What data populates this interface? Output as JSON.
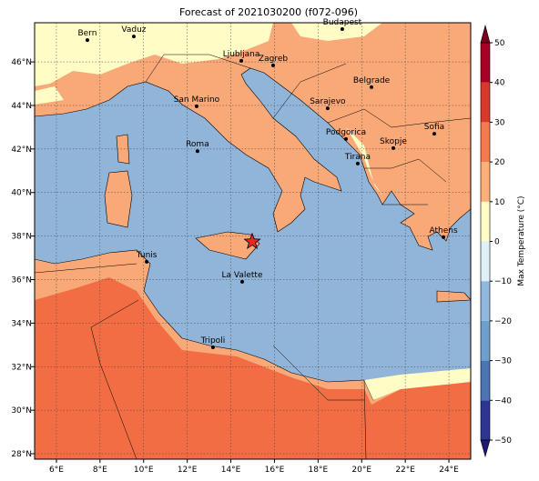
{
  "map": {
    "title": "Forecast of 2021030200 (f072-096)",
    "xlim": [
      5,
      25
    ],
    "ylim": [
      27.75,
      47.8
    ],
    "xticks": [
      {
        "value": 6,
        "label": "6°E"
      },
      {
        "value": 8,
        "label": "8°E"
      },
      {
        "value": 10,
        "label": "10°E"
      },
      {
        "value": 12,
        "label": "12°E"
      },
      {
        "value": 14,
        "label": "14°E"
      },
      {
        "value": 16,
        "label": "16°E"
      },
      {
        "value": 18,
        "label": "18°E"
      },
      {
        "value": 20,
        "label": "20°E"
      },
      {
        "value": 22,
        "label": "22°E"
      },
      {
        "value": 24,
        "label": "24°E"
      }
    ],
    "yticks": [
      {
        "value": 28,
        "label": "28°N"
      },
      {
        "value": 30,
        "label": "30°N"
      },
      {
        "value": 32,
        "label": "32°N"
      },
      {
        "value": 34,
        "label": "34°N"
      },
      {
        "value": 36,
        "label": "36°N"
      },
      {
        "value": 38,
        "label": "38°N"
      },
      {
        "value": 40,
        "label": "40°N"
      },
      {
        "value": 42,
        "label": "42°N"
      },
      {
        "value": 44,
        "label": "44°N"
      },
      {
        "value": 46,
        "label": "46°N"
      }
    ],
    "grid": true,
    "cities": [
      {
        "name": "Bern",
        "lon": 7.42,
        "lat": 47.0
      },
      {
        "name": "Vaduz",
        "lon": 9.55,
        "lat": 47.17
      },
      {
        "name": "Budapest",
        "lon": 19.11,
        "lat": 47.51
      },
      {
        "name": "Ljubljana",
        "lon": 14.48,
        "lat": 46.05
      },
      {
        "name": "Zagreb",
        "lon": 15.94,
        "lat": 45.84
      },
      {
        "name": "Belgrade",
        "lon": 20.45,
        "lat": 44.84
      },
      {
        "name": "San Marino",
        "lon": 12.43,
        "lat": 43.96
      },
      {
        "name": "Sarajevo",
        "lon": 18.44,
        "lat": 43.87
      },
      {
        "name": "Sofia",
        "lon": 23.33,
        "lat": 42.7
      },
      {
        "name": "Roma",
        "lon": 12.47,
        "lat": 41.9
      },
      {
        "name": "Podgorica",
        "lon": 19.28,
        "lat": 42.46
      },
      {
        "name": "Skopje",
        "lon": 21.45,
        "lat": 42.04
      },
      {
        "name": "Tirana",
        "lon": 19.82,
        "lat": 41.33
      },
      {
        "name": "Athens",
        "lon": 23.75,
        "lat": 37.95
      },
      {
        "name": "Tunis",
        "lon": 10.14,
        "lat": 36.82
      },
      {
        "name": "La Valette",
        "lon": 14.52,
        "lat": 35.9
      },
      {
        "name": "Tripoli",
        "lon": 13.18,
        "lat": 32.89
      }
    ],
    "marker": {
      "lon": 14.98,
      "lat": 37.74,
      "color": "#e8281e"
    },
    "colorbar": {
      "label": "Max Temperature (°C)",
      "ticks": [
        {
          "value": -50,
          "label": "−50"
        },
        {
          "value": -40,
          "label": "−40"
        },
        {
          "value": -30,
          "label": "−30"
        },
        {
          "value": -20,
          "label": "−20"
        },
        {
          "value": -10,
          "label": "−10"
        },
        0,
        10,
        20,
        30,
        40,
        50
      ],
      "colors": [
        "#2c3591",
        "#4a74b3",
        "#6f9fcb",
        "#92b9db",
        "#dff1f6",
        "#fffcc5",
        "#fbb07a",
        "#f57a4f",
        "#d73a2c",
        "#a50026"
      ],
      "under_color": "#1f1a75",
      "over_color": "#7a0020"
    }
  }
}
